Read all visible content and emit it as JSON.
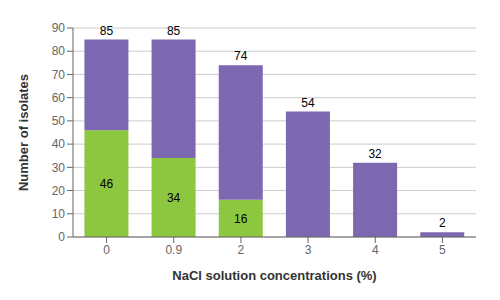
{
  "chart_data": {
    "type": "bar",
    "stacked": true,
    "categories": [
      "0",
      "0.9",
      "2",
      "3",
      "4",
      "5"
    ],
    "series": [
      {
        "color": "#8dc63f",
        "values": [
          46,
          34,
          16,
          0,
          0,
          0
        ],
        "data_labels": true,
        "value_labels": [
          "46",
          "34",
          "16",
          null,
          null,
          null
        ]
      },
      {
        "color": "#7b68b0",
        "values": [
          39,
          51,
          58,
          54,
          32,
          2
        ]
      }
    ],
    "totals": [
      85,
      85,
      74,
      54,
      32,
      2
    ],
    "xlabel": "NaCl solution concentrations (%)",
    "ylabel": "Number of isolates",
    "ylim": [
      0,
      90
    ],
    "yticks": [
      0,
      10,
      20,
      30,
      40,
      50,
      60,
      70,
      80,
      90
    ],
    "grid": true
  }
}
